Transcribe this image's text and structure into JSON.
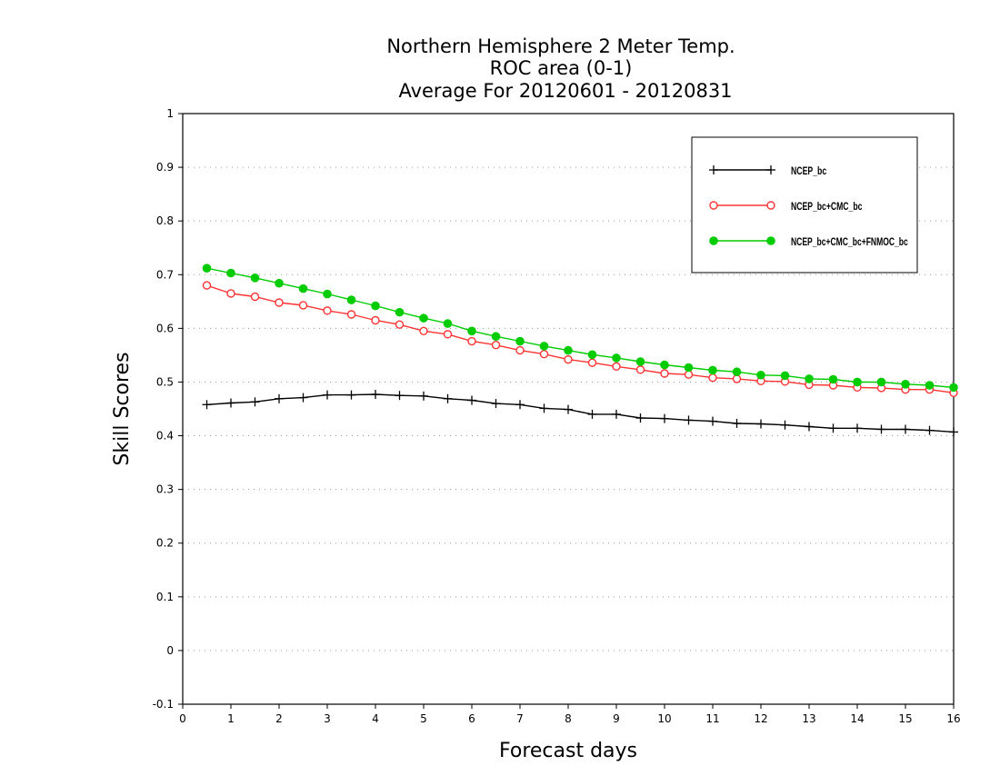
{
  "chart_data": {
    "type": "line",
    "title": [
      "Northern Hemisphere 2 Meter Temp.",
      "ROC area (0-1)",
      "Average For 20120601 - 20120831"
    ],
    "xlabel": "Forecast days",
    "ylabel": "Skill Scores",
    "xlim": [
      0,
      16
    ],
    "ylim": [
      -0.1,
      1
    ],
    "xticks": [
      "0",
      "1",
      "2",
      "3",
      "4",
      "5",
      "6",
      "7",
      "8",
      "9",
      "10",
      "11",
      "12",
      "13",
      "14",
      "15",
      "16"
    ],
    "yticks": [
      "-0.1",
      "0",
      "0.1",
      "0.2",
      "0.3",
      "0.4",
      "0.5",
      "0.6",
      "0.7",
      "0.8",
      "0.9",
      "1"
    ],
    "grid": "horizontal dotted",
    "legend_position": "top-right",
    "x": [
      0.5,
      1,
      1.5,
      2,
      2.5,
      3,
      3.5,
      4,
      4.5,
      5,
      5.5,
      6,
      6.5,
      7,
      7.5,
      8,
      8.5,
      9,
      9.5,
      10,
      10.5,
      11,
      11.5,
      12,
      12.5,
      13,
      13.5,
      14,
      14.5,
      15,
      15.5,
      16
    ],
    "series": [
      {
        "name": "NCEP_bc",
        "color": "#000000",
        "marker": "plus",
        "values": [
          0.458,
          0.461,
          0.463,
          0.469,
          0.471,
          0.476,
          0.476,
          0.477,
          0.475,
          0.474,
          0.469,
          0.466,
          0.46,
          0.458,
          0.451,
          0.449,
          0.44,
          0.44,
          0.433,
          0.432,
          0.429,
          0.427,
          0.423,
          0.422,
          0.42,
          0.417,
          0.414,
          0.414,
          0.412,
          0.412,
          0.41,
          0.407
        ]
      },
      {
        "name": "NCEP_bc+CMC_bc",
        "color": "#ff3333",
        "marker": "open-circle",
        "values": [
          0.68,
          0.665,
          0.659,
          0.648,
          0.643,
          0.633,
          0.626,
          0.615,
          0.607,
          0.595,
          0.589,
          0.576,
          0.569,
          0.559,
          0.552,
          0.542,
          0.536,
          0.529,
          0.523,
          0.516,
          0.514,
          0.508,
          0.506,
          0.502,
          0.501,
          0.495,
          0.494,
          0.49,
          0.489,
          0.486,
          0.486,
          0.48
        ]
      },
      {
        "name": "NCEP_bc+CMC_bc+FNMOC_bc",
        "color": "#00cc00",
        "marker": "filled-circle",
        "values": [
          0.712,
          0.703,
          0.694,
          0.684,
          0.674,
          0.664,
          0.653,
          0.642,
          0.63,
          0.619,
          0.609,
          0.595,
          0.585,
          0.576,
          0.567,
          0.559,
          0.551,
          0.545,
          0.538,
          0.532,
          0.527,
          0.522,
          0.519,
          0.513,
          0.512,
          0.506,
          0.505,
          0.5,
          0.5,
          0.496,
          0.494,
          0.49
        ]
      }
    ]
  }
}
